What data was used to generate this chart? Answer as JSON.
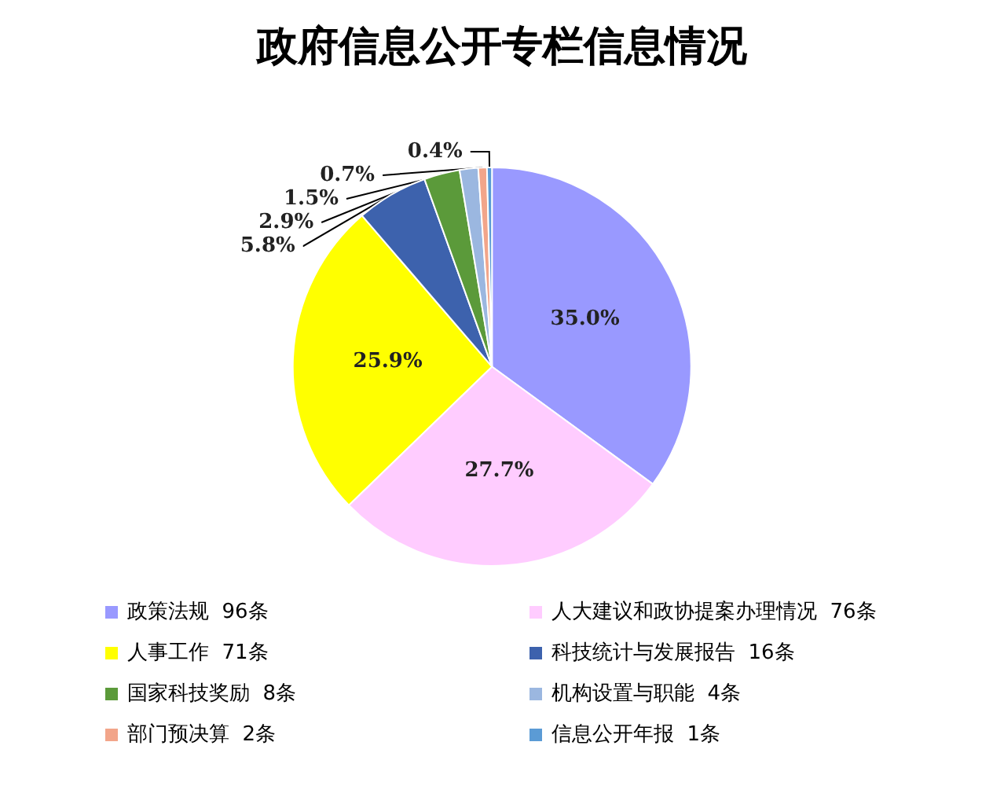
{
  "chart_data": {
    "type": "pie",
    "title": "政府信息公开专栏信息情况",
    "categories": [
      "政策法规  96条",
      "人大建议和政协提案办理情况  76条",
      "人事工作  71条",
      "科技统计与发展报告  16条",
      "国家科技奖励  8条",
      "机构设置与职能  4条",
      "部门预决算  2条",
      "信息公开年报  1条"
    ],
    "values": [
      35.0,
      27.7,
      25.9,
      5.8,
      2.9,
      1.5,
      0.7,
      0.4
    ],
    "colors": [
      "#9999ff",
      "#ffccff",
      "#ffff00",
      "#3d62ad",
      "#5b9a3a",
      "#9bb7e0",
      "#f2a58a",
      "#5b9bd5"
    ],
    "value_labels": [
      "35.0%",
      "27.7%",
      "25.9%",
      "5.8%",
      "2.9%",
      "1.5%",
      "0.7%",
      "0.4%"
    ],
    "legend": "bottom"
  }
}
